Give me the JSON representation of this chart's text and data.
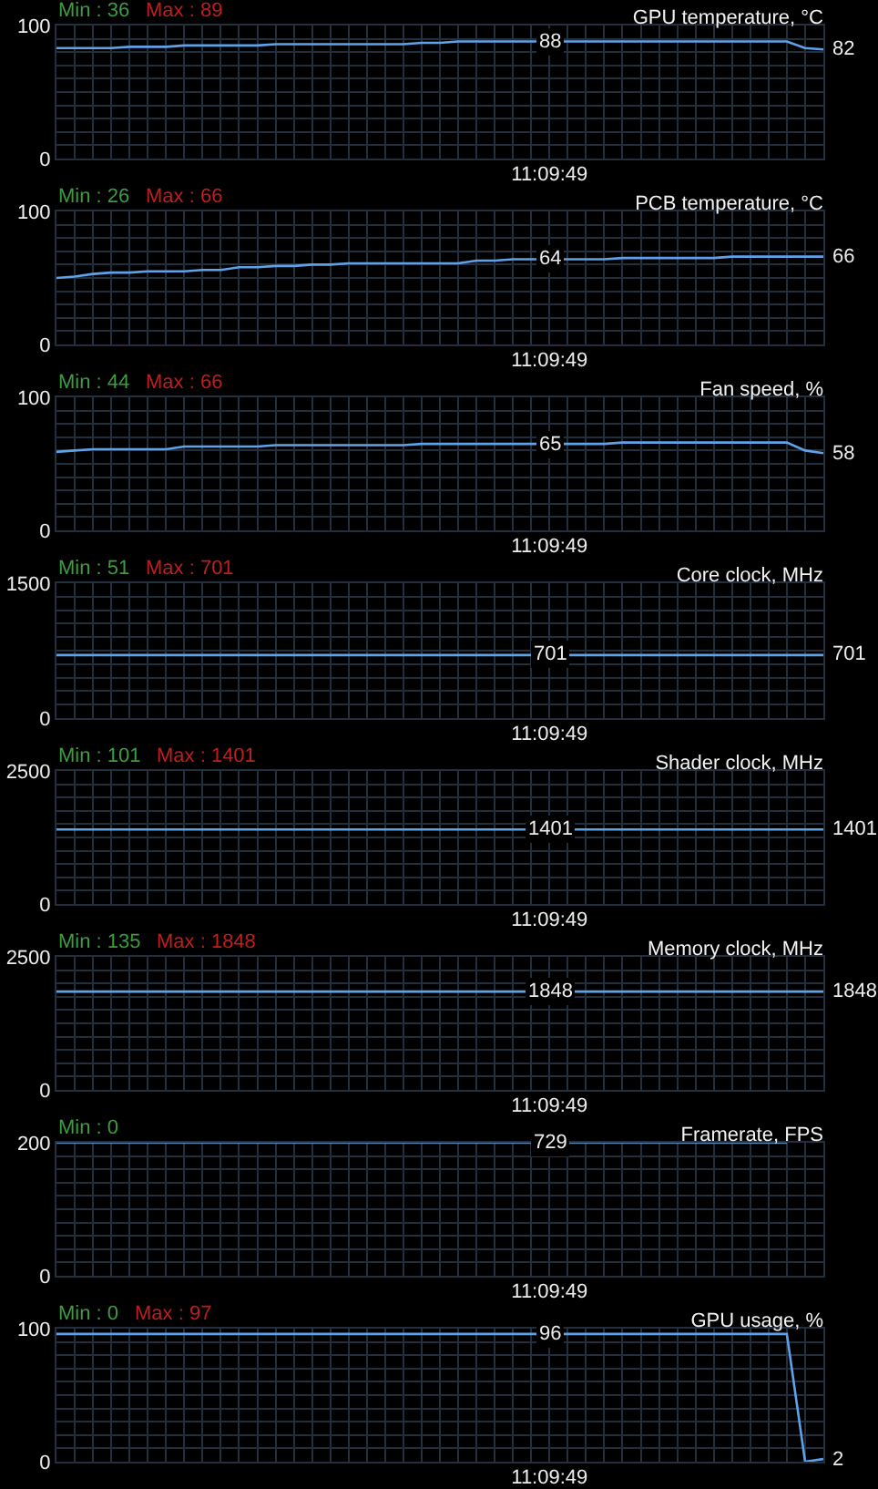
{
  "chart_data": [
    {
      "type": "line",
      "title": "GPU temperature, °C",
      "annotations": [
        "Min : 36",
        "Max : 89"
      ],
      "categories": [
        null,
        null,
        null,
        null,
        null,
        null,
        null,
        null,
        null,
        null,
        null,
        null,
        null,
        null,
        null,
        null,
        null,
        null,
        null,
        null,
        null,
        null,
        null,
        null,
        null,
        null,
        null,
        "11:09:49",
        null,
        null,
        null,
        null,
        null,
        null,
        null,
        null,
        null,
        null,
        null,
        null,
        null,
        null,
        null
      ],
      "values": [
        83,
        83,
        83,
        83,
        84,
        84,
        84,
        85,
        85,
        85,
        85,
        85,
        86,
        86,
        86,
        86,
        86,
        86,
        86,
        86,
        87,
        87,
        88,
        88,
        88,
        88,
        88,
        88,
        88,
        88,
        88,
        88,
        88,
        88,
        88,
        88,
        88,
        88,
        88,
        88,
        88,
        83,
        82
      ],
      "value_labels": [
        null,
        null,
        null,
        null,
        null,
        null,
        null,
        null,
        null,
        null,
        null,
        null,
        null,
        null,
        null,
        null,
        null,
        null,
        null,
        null,
        null,
        null,
        null,
        null,
        null,
        null,
        null,
        "88",
        null,
        null,
        null,
        null,
        null,
        null,
        null,
        null,
        null,
        null,
        null,
        null,
        null,
        null,
        "82"
      ],
      "color": "#5ea3ea",
      "ylim": [
        0,
        100
      ],
      "yticks": [
        0,
        {
          "value": 10,
          "label": null
        },
        {
          "value": 20,
          "label": null
        },
        {
          "value": 30,
          "label": null
        },
        {
          "value": 40,
          "label": null
        },
        {
          "value": 50,
          "label": null
        },
        {
          "value": 60,
          "label": null
        },
        {
          "value": 70,
          "label": null
        },
        {
          "value": 80,
          "label": null
        },
        {
          "value": 90,
          "label": null
        },
        100
      ],
      "grid": true
    },
    {
      "type": "line",
      "title": "PCB temperature, °C",
      "annotations": [
        "Min : 26",
        "Max : 66"
      ],
      "categories": [
        null,
        null,
        null,
        null,
        null,
        null,
        null,
        null,
        null,
        null,
        null,
        null,
        null,
        null,
        null,
        null,
        null,
        null,
        null,
        null,
        null,
        null,
        null,
        null,
        null,
        null,
        null,
        "11:09:49",
        null,
        null,
        null,
        null,
        null,
        null,
        null,
        null,
        null,
        null,
        null,
        null,
        null,
        null,
        null
      ],
      "values": [
        50,
        51,
        53,
        54,
        54,
        55,
        55,
        55,
        56,
        56,
        58,
        58,
        59,
        59,
        60,
        60,
        61,
        61,
        61,
        61,
        61,
        61,
        61,
        63,
        63,
        64,
        64,
        64,
        64,
        64,
        64,
        65,
        65,
        65,
        65,
        65,
        65,
        66,
        66,
        66,
        66,
        66,
        66
      ],
      "value_labels": [
        null,
        null,
        null,
        null,
        null,
        null,
        null,
        null,
        null,
        null,
        null,
        null,
        null,
        null,
        null,
        null,
        null,
        null,
        null,
        null,
        null,
        null,
        null,
        null,
        null,
        null,
        null,
        "64",
        null,
        null,
        null,
        null,
        null,
        null,
        null,
        null,
        null,
        null,
        null,
        null,
        null,
        null,
        "66"
      ],
      "color": "#5ea3ea",
      "ylim": [
        0,
        100
      ],
      "yticks": [
        0,
        {
          "value": 10,
          "label": null
        },
        {
          "value": 20,
          "label": null
        },
        {
          "value": 30,
          "label": null
        },
        {
          "value": 40,
          "label": null
        },
        {
          "value": 50,
          "label": null
        },
        {
          "value": 60,
          "label": null
        },
        {
          "value": 70,
          "label": null
        },
        {
          "value": 80,
          "label": null
        },
        {
          "value": 90,
          "label": null
        },
        100
      ],
      "grid": true
    },
    {
      "type": "line",
      "title": "Fan speed, %",
      "annotations": [
        "Min : 44",
        "Max : 66"
      ],
      "categories": [
        null,
        null,
        null,
        null,
        null,
        null,
        null,
        null,
        null,
        null,
        null,
        null,
        null,
        null,
        null,
        null,
        null,
        null,
        null,
        null,
        null,
        null,
        null,
        null,
        null,
        null,
        null,
        "11:09:49",
        null,
        null,
        null,
        null,
        null,
        null,
        null,
        null,
        null,
        null,
        null,
        null,
        null,
        null,
        null
      ],
      "values": [
        59,
        60,
        61,
        61,
        61,
        61,
        61,
        63,
        63,
        63,
        63,
        63,
        64,
        64,
        64,
        64,
        64,
        64,
        64,
        64,
        65,
        65,
        65,
        65,
        65,
        65,
        65,
        65,
        65,
        65,
        65,
        66,
        66,
        66,
        66,
        66,
        66,
        66,
        66,
        66,
        66,
        60,
        58
      ],
      "value_labels": [
        null,
        null,
        null,
        null,
        null,
        null,
        null,
        null,
        null,
        null,
        null,
        null,
        null,
        null,
        null,
        null,
        null,
        null,
        null,
        null,
        null,
        null,
        null,
        null,
        null,
        null,
        null,
        "65",
        null,
        null,
        null,
        null,
        null,
        null,
        null,
        null,
        null,
        null,
        null,
        null,
        null,
        null,
        "58"
      ],
      "color": "#5ea3ea",
      "ylim": [
        0,
        100
      ],
      "yticks": [
        0,
        {
          "value": 10,
          "label": null
        },
        {
          "value": 20,
          "label": null
        },
        {
          "value": 30,
          "label": null
        },
        {
          "value": 40,
          "label": null
        },
        {
          "value": 50,
          "label": null
        },
        {
          "value": 60,
          "label": null
        },
        {
          "value": 70,
          "label": null
        },
        {
          "value": 80,
          "label": null
        },
        {
          "value": 90,
          "label": null
        },
        100
      ],
      "grid": true
    },
    {
      "type": "line",
      "title": "Core clock, MHz",
      "annotations": [
        "Min : 51",
        "Max : 701"
      ],
      "categories": [
        null,
        null,
        null,
        null,
        null,
        null,
        null,
        null,
        null,
        null,
        null,
        null,
        null,
        null,
        null,
        null,
        null,
        null,
        null,
        null,
        null,
        null,
        null,
        null,
        null,
        null,
        null,
        "11:09:49",
        null,
        null,
        null,
        null,
        null,
        null,
        null,
        null,
        null,
        null,
        null,
        null,
        null,
        null,
        null
      ],
      "values": [
        701,
        701,
        701,
        701,
        701,
        701,
        701,
        701,
        701,
        701,
        701,
        701,
        701,
        701,
        701,
        701,
        701,
        701,
        701,
        701,
        701,
        701,
        701,
        701,
        701,
        701,
        701,
        701,
        701,
        701,
        701,
        701,
        701,
        701,
        701,
        701,
        701,
        701,
        701,
        701,
        701,
        701,
        701
      ],
      "value_labels": [
        null,
        null,
        null,
        null,
        null,
        null,
        null,
        null,
        null,
        null,
        null,
        null,
        null,
        null,
        null,
        null,
        null,
        null,
        null,
        null,
        null,
        null,
        null,
        null,
        null,
        null,
        null,
        "701",
        null,
        null,
        null,
        null,
        null,
        null,
        null,
        null,
        null,
        null,
        null,
        null,
        null,
        null,
        "701"
      ],
      "color": "#5ea3ea",
      "ylim": [
        0,
        1500
      ],
      "yticks": [
        0,
        {
          "value": 150,
          "label": null
        },
        {
          "value": 300,
          "label": null
        },
        {
          "value": 450,
          "label": null
        },
        {
          "value": 600,
          "label": null
        },
        {
          "value": 750,
          "label": null
        },
        {
          "value": 900,
          "label": null
        },
        {
          "value": 1050,
          "label": null
        },
        {
          "value": 1200,
          "label": null
        },
        {
          "value": 1350,
          "label": null
        },
        1500
      ],
      "grid": true
    },
    {
      "type": "line",
      "title": "Shader clock, MHz",
      "annotations": [
        "Min : 101",
        "Max : 1401"
      ],
      "categories": [
        null,
        null,
        null,
        null,
        null,
        null,
        null,
        null,
        null,
        null,
        null,
        null,
        null,
        null,
        null,
        null,
        null,
        null,
        null,
        null,
        null,
        null,
        null,
        null,
        null,
        null,
        null,
        "11:09:49",
        null,
        null,
        null,
        null,
        null,
        null,
        null,
        null,
        null,
        null,
        null,
        null,
        null,
        null,
        null
      ],
      "values": [
        1401,
        1401,
        1401,
        1401,
        1401,
        1401,
        1401,
        1401,
        1401,
        1401,
        1401,
        1401,
        1401,
        1401,
        1401,
        1401,
        1401,
        1401,
        1401,
        1401,
        1401,
        1401,
        1401,
        1401,
        1401,
        1401,
        1401,
        1401,
        1401,
        1401,
        1401,
        1401,
        1401,
        1401,
        1401,
        1401,
        1401,
        1401,
        1401,
        1401,
        1401,
        1401,
        1401
      ],
      "value_labels": [
        null,
        null,
        null,
        null,
        null,
        null,
        null,
        null,
        null,
        null,
        null,
        null,
        null,
        null,
        null,
        null,
        null,
        null,
        null,
        null,
        null,
        null,
        null,
        null,
        null,
        null,
        null,
        "1401",
        null,
        null,
        null,
        null,
        null,
        null,
        null,
        null,
        null,
        null,
        null,
        null,
        null,
        null,
        "1401"
      ],
      "color": "#5ea3ea",
      "ylim": [
        0,
        2500
      ],
      "yticks": [
        0,
        {
          "value": 250,
          "label": null
        },
        {
          "value": 500,
          "label": null
        },
        {
          "value": 750,
          "label": null
        },
        {
          "value": 1000,
          "label": null
        },
        {
          "value": 1250,
          "label": null
        },
        {
          "value": 1500,
          "label": null
        },
        {
          "value": 1750,
          "label": null
        },
        {
          "value": 2000,
          "label": null
        },
        {
          "value": 2250,
          "label": null
        },
        2500
      ],
      "grid": true
    },
    {
      "type": "line",
      "title": "Memory clock, MHz",
      "annotations": [
        "Min : 135",
        "Max : 1848"
      ],
      "categories": [
        null,
        null,
        null,
        null,
        null,
        null,
        null,
        null,
        null,
        null,
        null,
        null,
        null,
        null,
        null,
        null,
        null,
        null,
        null,
        null,
        null,
        null,
        null,
        null,
        null,
        null,
        null,
        "11:09:49",
        null,
        null,
        null,
        null,
        null,
        null,
        null,
        null,
        null,
        null,
        null,
        null,
        null,
        null,
        null
      ],
      "values": [
        1848,
        1848,
        1848,
        1848,
        1848,
        1848,
        1848,
        1848,
        1848,
        1848,
        1848,
        1848,
        1848,
        1848,
        1848,
        1848,
        1848,
        1848,
        1848,
        1848,
        1848,
        1848,
        1848,
        1848,
        1848,
        1848,
        1848,
        1848,
        1848,
        1848,
        1848,
        1848,
        1848,
        1848,
        1848,
        1848,
        1848,
        1848,
        1848,
        1848,
        1848,
        1848,
        1848
      ],
      "value_labels": [
        null,
        null,
        null,
        null,
        null,
        null,
        null,
        null,
        null,
        null,
        null,
        null,
        null,
        null,
        null,
        null,
        null,
        null,
        null,
        null,
        null,
        null,
        null,
        null,
        null,
        null,
        null,
        "1848",
        null,
        null,
        null,
        null,
        null,
        null,
        null,
        null,
        null,
        null,
        null,
        null,
        null,
        null,
        "1848"
      ],
      "color": "#5ea3ea",
      "ylim": [
        0,
        2500
      ],
      "yticks": [
        0,
        {
          "value": 250,
          "label": null
        },
        {
          "value": 500,
          "label": null
        },
        {
          "value": 750,
          "label": null
        },
        {
          "value": 1000,
          "label": null
        },
        {
          "value": 1250,
          "label": null
        },
        {
          "value": 1500,
          "label": null
        },
        {
          "value": 1750,
          "label": null
        },
        {
          "value": 2000,
          "label": null
        },
        {
          "value": 2250,
          "label": null
        },
        2500
      ],
      "grid": true
    },
    {
      "type": "line",
      "title": "Framerate, FPS",
      "annotations": [
        "Min : 0",
        {
          "text": "729",
          "x": "11:09:49",
          "y": 200
        }
      ],
      "categories": [
        null,
        null,
        null,
        null,
        null,
        null,
        null,
        null,
        null,
        null,
        null,
        null,
        null,
        null,
        null,
        null,
        null,
        null,
        null,
        null,
        null,
        null,
        null,
        null,
        null,
        null,
        null,
        "11:09:49",
        null,
        null,
        null,
        null,
        null,
        null,
        null,
        null,
        null,
        null,
        null,
        null,
        null,
        null,
        null
      ],
      "values": [
        200,
        200,
        200,
        200,
        200,
        200,
        200,
        200,
        200,
        200,
        200,
        200,
        200,
        200,
        200,
        200,
        200,
        200,
        200,
        200,
        200,
        200,
        200,
        200,
        200,
        200,
        200,
        200,
        200,
        200,
        200,
        200,
        200,
        200,
        200,
        200,
        200,
        200,
        200,
        200,
        200,
        null,
        null
      ],
      "color": "#5b87b0",
      "ylim": [
        0,
        200
      ],
      "yticks": [
        0,
        {
          "value": 20,
          "label": null
        },
        {
          "value": 40,
          "label": null
        },
        {
          "value": 60,
          "label": null
        },
        {
          "value": 80,
          "label": null
        },
        {
          "value": 100,
          "label": null
        },
        {
          "value": 120,
          "label": null
        },
        {
          "value": 140,
          "label": null
        },
        {
          "value": 160,
          "label": null
        },
        {
          "value": 180,
          "label": null
        },
        200
      ],
      "grid": true
    },
    {
      "type": "line",
      "title": "GPU usage, %",
      "annotations": [
        "Min : 0",
        "Max : 97"
      ],
      "categories": [
        null,
        null,
        null,
        null,
        null,
        null,
        null,
        null,
        null,
        null,
        null,
        null,
        null,
        null,
        null,
        null,
        null,
        null,
        null,
        null,
        null,
        null,
        null,
        null,
        null,
        null,
        null,
        "11:09:49",
        null,
        null,
        null,
        null,
        null,
        null,
        null,
        null,
        null,
        null,
        null,
        null,
        null,
        null,
        null
      ],
      "values": [
        96,
        96,
        96,
        96,
        96,
        96,
        96,
        96,
        96,
        96,
        96,
        96,
        96,
        96,
        96,
        96,
        96,
        96,
        96,
        96,
        96,
        96,
        96,
        96,
        96,
        96,
        96,
        96,
        96,
        96,
        96,
        96,
        96,
        96,
        96,
        96,
        96,
        96,
        96,
        96,
        96,
        0,
        2
      ],
      "value_labels": [
        null,
        null,
        null,
        null,
        null,
        null,
        null,
        null,
        null,
        null,
        null,
        null,
        null,
        null,
        null,
        null,
        null,
        null,
        null,
        null,
        null,
        null,
        null,
        null,
        null,
        null,
        null,
        "96",
        null,
        null,
        null,
        null,
        null,
        null,
        null,
        null,
        null,
        null,
        null,
        null,
        null,
        null,
        "2"
      ],
      "color": "#5ea3ea",
      "ylim": [
        0,
        100
      ],
      "yticks": [
        0,
        {
          "value": 10,
          "label": null
        },
        {
          "value": 20,
          "label": null
        },
        {
          "value": 30,
          "label": null
        },
        {
          "value": 40,
          "label": null
        },
        {
          "value": 50,
          "label": null
        },
        {
          "value": 60,
          "label": null
        },
        {
          "value": 70,
          "label": null
        },
        {
          "value": 80,
          "label": null
        },
        {
          "value": 90,
          "label": null
        },
        100
      ],
      "grid": true
    }
  ]
}
